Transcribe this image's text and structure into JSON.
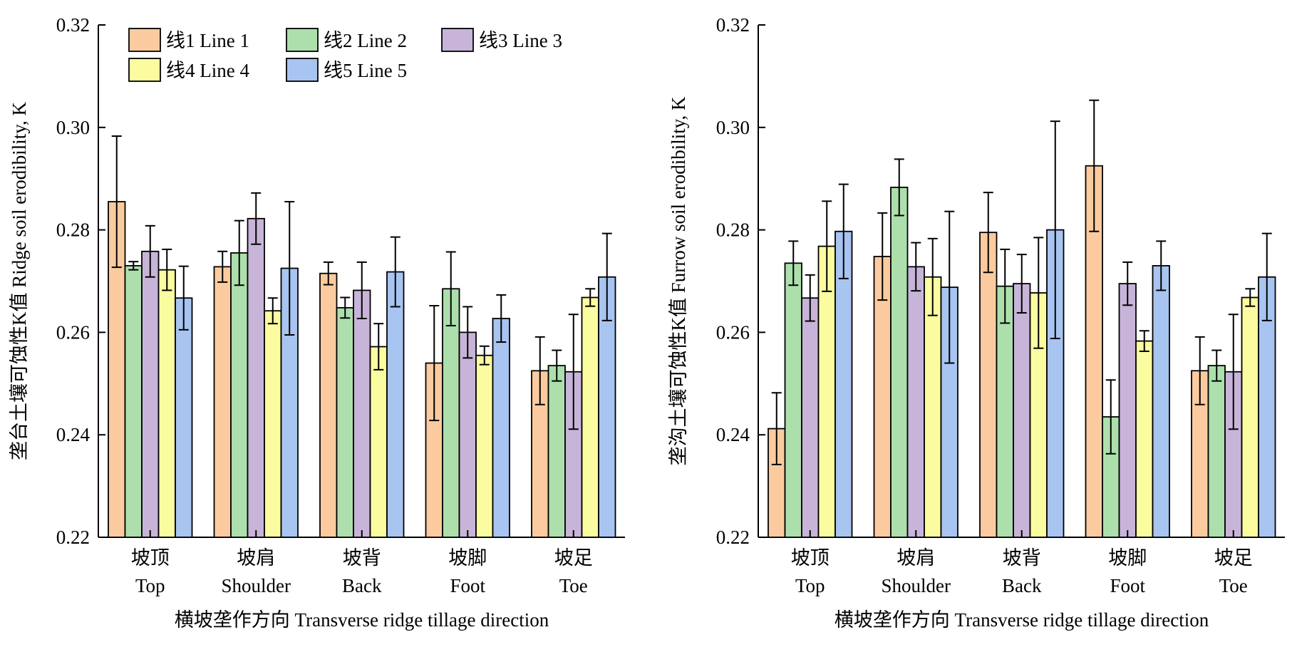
{
  "legend": [
    {
      "label": "线1 Line 1",
      "color": "#fbcb9f"
    },
    {
      "label": "线2 Line 2",
      "color": "#acdfac"
    },
    {
      "label": "线3 Line 3",
      "color": "#c8b4d9"
    },
    {
      "label": "线4 Line 4",
      "color": "#fbfba0"
    },
    {
      "label": "线5 Line 5",
      "color": "#a8c4f0"
    }
  ],
  "chart_data": [
    {
      "type": "bar",
      "ylabel": "垄台土壤可蚀性K值 Ridge soil erodibility, K",
      "xlabel": "横坡垄作方向 Transverse ridge tillage direction",
      "ylim": [
        0.22,
        0.32
      ],
      "yticks": [
        "0.22",
        "0.24",
        "0.26",
        "0.28",
        "0.30",
        "0.32"
      ],
      "categories": [
        {
          "zh": "坡顶",
          "en": "Top"
        },
        {
          "zh": "坡肩",
          "en": "Shoulder"
        },
        {
          "zh": "坡背",
          "en": "Back"
        },
        {
          "zh": "坡脚",
          "en": "Foot"
        },
        {
          "zh": "坡足",
          "en": "Toe"
        }
      ],
      "series": [
        {
          "name": "线1 Line 1",
          "values": [
            0.2855,
            0.2728,
            0.2715,
            0.254,
            0.2525
          ],
          "errors": [
            0.0128,
            0.003,
            0.0022,
            0.0112,
            0.0066
          ]
        },
        {
          "name": "线2 Line 2",
          "values": [
            0.273,
            0.2755,
            0.2648,
            0.2685,
            0.2535
          ],
          "errors": [
            0.0008,
            0.0063,
            0.002,
            0.0072,
            0.003
          ]
        },
        {
          "name": "线3 Line 3",
          "values": [
            0.2758,
            0.2822,
            0.2682,
            0.26,
            0.2523
          ],
          "errors": [
            0.005,
            0.005,
            0.0055,
            0.005,
            0.0112
          ]
        },
        {
          "name": "线4 Line 4",
          "values": [
            0.2722,
            0.2642,
            0.2572,
            0.2555,
            0.2668
          ],
          "errors": [
            0.004,
            0.0025,
            0.0045,
            0.0018,
            0.0017
          ]
        },
        {
          "name": "线5 Line 5",
          "values": [
            0.2667,
            0.2725,
            0.2718,
            0.2627,
            0.2708
          ],
          "errors": [
            0.0062,
            0.013,
            0.0068,
            0.0046,
            0.0085
          ]
        }
      ]
    },
    {
      "type": "bar",
      "ylabel": "垄沟土壤可蚀性K值 Furrow soil erodibility, K",
      "xlabel": "横坡垄作方向 Transverse ridge tillage direction",
      "ylim": [
        0.22,
        0.32
      ],
      "yticks": [
        "0.22",
        "0.24",
        "0.26",
        "0.28",
        "0.30",
        "0.32"
      ],
      "categories": [
        {
          "zh": "坡顶",
          "en": "Top"
        },
        {
          "zh": "坡肩",
          "en": "Shoulder"
        },
        {
          "zh": "坡背",
          "en": "Back"
        },
        {
          "zh": "坡脚",
          "en": "Foot"
        },
        {
          "zh": "坡足",
          "en": "Toe"
        }
      ],
      "series": [
        {
          "name": "线1 Line 1",
          "values": [
            0.2412,
            0.2748,
            0.2795,
            0.2925,
            0.2525
          ],
          "errors": [
            0.007,
            0.0085,
            0.0078,
            0.0128,
            0.0066
          ]
        },
        {
          "name": "线2 Line 2",
          "values": [
            0.2735,
            0.2883,
            0.269,
            0.2435,
            0.2535
          ],
          "errors": [
            0.0043,
            0.0055,
            0.0072,
            0.0072,
            0.003
          ]
        },
        {
          "name": "线3 Line 3",
          "values": [
            0.2667,
            0.2728,
            0.2695,
            0.2695,
            0.2523
          ],
          "errors": [
            0.0045,
            0.0047,
            0.0057,
            0.0042,
            0.0112
          ]
        },
        {
          "name": "线4 Line 4",
          "values": [
            0.2768,
            0.2708,
            0.2677,
            0.2583,
            0.2668
          ],
          "errors": [
            0.0088,
            0.0075,
            0.0108,
            0.002,
            0.0017
          ]
        },
        {
          "name": "线5 Line 5",
          "values": [
            0.2797,
            0.2688,
            0.28,
            0.273,
            0.2708
          ],
          "errors": [
            0.0092,
            0.0148,
            0.0212,
            0.0048,
            0.0085
          ]
        }
      ]
    }
  ]
}
